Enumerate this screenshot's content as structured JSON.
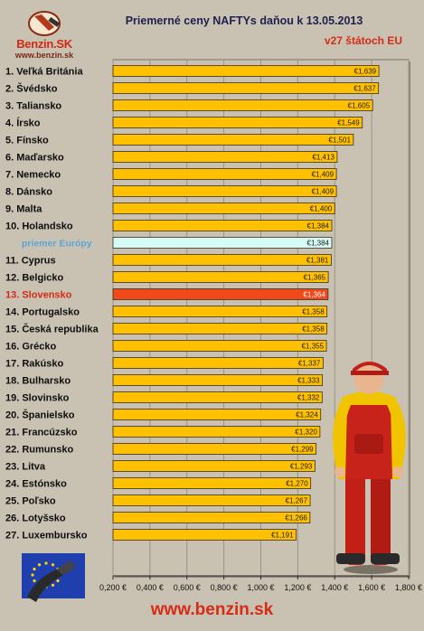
{
  "header": {
    "title": "Priemerné ceny NAFTYs daňou k 13.05.2013",
    "subtitle": "v27 štátoch EU"
  },
  "logo": {
    "brand": "Benzin.SK",
    "url": "www.benzin.sk"
  },
  "footer": {
    "url": "www.benzin.sk"
  },
  "colors": {
    "bar": "#ffc000",
    "europe_bar": "#d6fbf6",
    "slovakia_bar": "#f04a1a",
    "slovakia_label": "#d52b17",
    "europe_label": "#5aa6d8",
    "plot_bg": "#c9c1b1"
  },
  "chart_data": {
    "type": "bar",
    "orientation": "horizontal",
    "title": "Priemerné ceny NAFTYs daňou k 13.05.2013",
    "subtitle": "v27 štátoch EU",
    "xlim": [
      0.2,
      1.8
    ],
    "xticks": [
      "0,200 €",
      "0,400 €",
      "0,600 €",
      "0,800 €",
      "1,000 €",
      "1,200 €",
      "1,400 €",
      "1,600 €",
      "1,800 €"
    ],
    "xtick_values": [
      0.2,
      0.4,
      0.6,
      0.8,
      1.0,
      1.2,
      1.4,
      1.6,
      1.8
    ],
    "grid": "vertical",
    "categories": [
      "1. Veľká Británia",
      "2. Švédsko",
      "3. Taliansko",
      "4. Írsko",
      "5. Fínsko",
      "6. Maďarsko",
      "7. Nemecko",
      "8. Dánsko",
      "9. Malta",
      "10. Holandsko",
      "priemer Európy",
      "11. Cyprus",
      "12. Belgicko",
      "13. Slovensko",
      "14. Portugalsko",
      "15. Česká republika",
      "16. Grécko",
      "17. Rakúsko",
      "18. Bulharsko",
      "19. Slovinsko",
      "20. Španielsko",
      "21. Francúzsko",
      "22. Rumunsko",
      "23. Litva",
      "24. Estónsko",
      "25. Poľsko",
      "26. Lotyšsko",
      "27. Luxembursko"
    ],
    "values": [
      1.639,
      1.637,
      1.605,
      1.549,
      1.501,
      1.413,
      1.409,
      1.409,
      1.4,
      1.384,
      1.384,
      1.381,
      1.365,
      1.364,
      1.358,
      1.358,
      1.355,
      1.337,
      1.333,
      1.332,
      1.324,
      1.32,
      1.299,
      1.293,
      1.27,
      1.267,
      1.266,
      1.191
    ],
    "value_labels": [
      "€1,639",
      "€1,637",
      "€1,605",
      "€1,549",
      "€1,501",
      "€1,413",
      "€1,409",
      "€1,409",
      "€1,400",
      "€1,384",
      "€1,384",
      "€1,381",
      "€1,365",
      "€1,364",
      "€1,358",
      "€1,358",
      "€1,355",
      "€1,337",
      "€1,333",
      "€1,332",
      "€1,324",
      "€1,320",
      "€1,299",
      "€1,293",
      "€1,270",
      "€1,267",
      "€1,266",
      "€1,191"
    ],
    "highlight": {
      "europe_index": 10,
      "slovakia_index": 13
    }
  }
}
